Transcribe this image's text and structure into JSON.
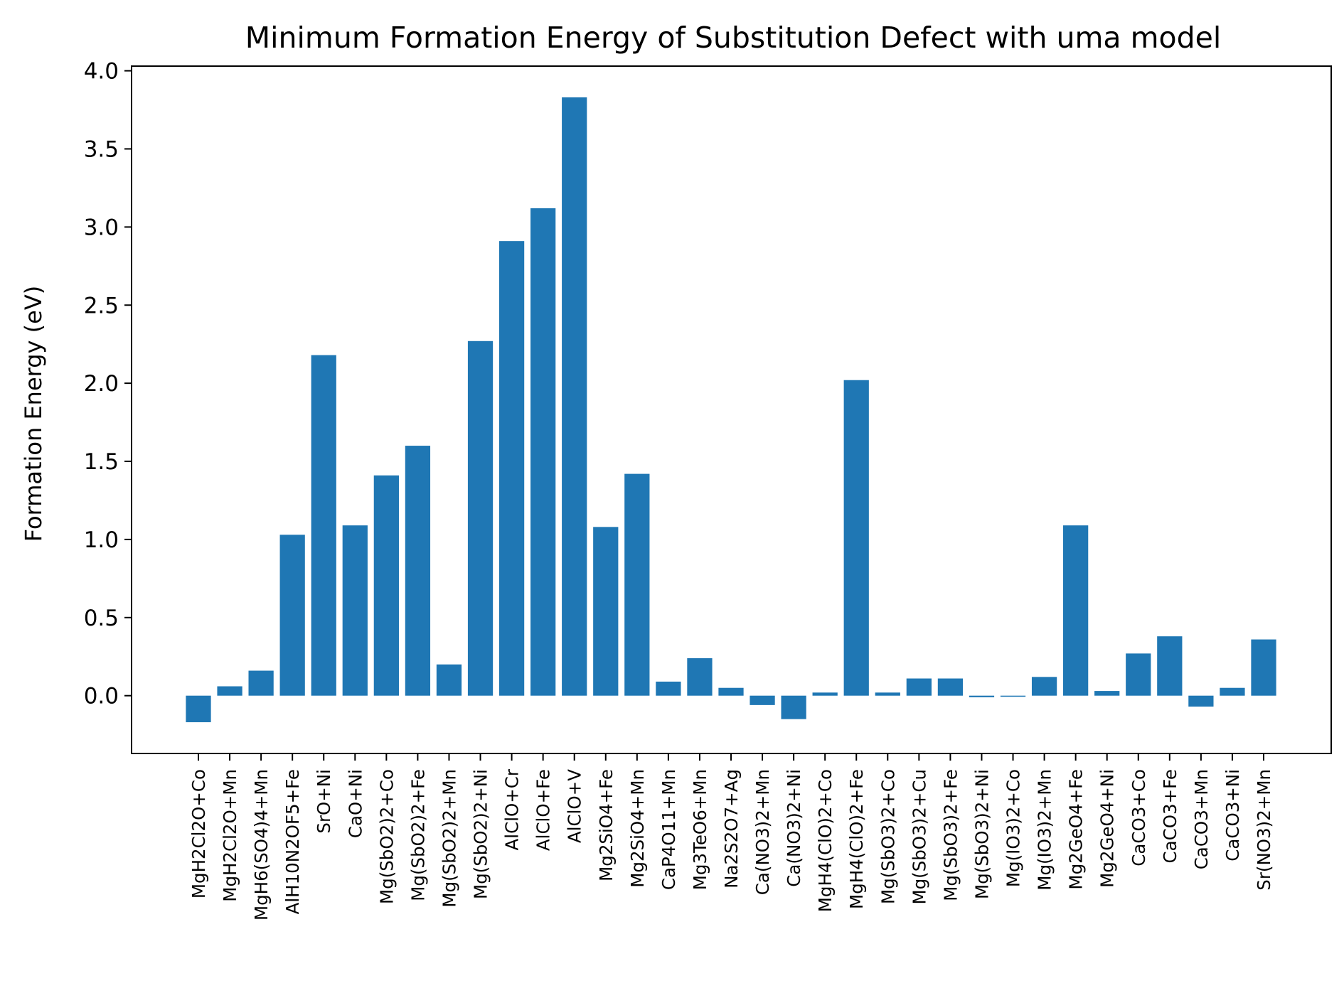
{
  "chart_data": {
    "type": "bar",
    "title": "Minimum Formation Energy of Substitution Defect with uma model",
    "xlabel": "",
    "ylabel": "Formation Energy (eV)",
    "ylim": [
      -0.37,
      4.03
    ],
    "yticks": [
      "0.0",
      "0.5",
      "1.0",
      "1.5",
      "2.0",
      "2.5",
      "3.0",
      "3.5",
      "4.0"
    ],
    "grid": false,
    "bar_color": "#1f77b4",
    "categories": [
      "MgH2Cl2O+Co",
      "MgH2Cl2O+Mn",
      "MgH6(SO4)4+Mn",
      "AlH10N2OF5+Fe",
      "SrO+Ni",
      "CaO+Ni",
      "Mg(SbO2)2+Co",
      "Mg(SbO2)2+Fe",
      "Mg(SbO2)2+Mn",
      "Mg(SbO2)2+Ni",
      "AlClO+Cr",
      "AlClO+Fe",
      "AlClO+V",
      "Mg2SiO4+Fe",
      "Mg2SiO4+Mn",
      "CaP4O11+Mn",
      "Mg3TeO6+Mn",
      "Na2S2O7+Ag",
      "Ca(NO3)2+Mn",
      "Ca(NO3)2+Ni",
      "MgH4(ClO)2+Co",
      "MgH4(ClO)2+Fe",
      "Mg(SbO3)2+Co",
      "Mg(SbO3)2+Cu",
      "Mg(SbO3)2+Fe",
      "Mg(SbO3)2+Ni",
      "Mg(IO3)2+Co",
      "Mg(IO3)2+Mn",
      "Mg2GeO4+Fe",
      "Mg2GeO4+Ni",
      "CaCO3+Co",
      "CaCO3+Fe",
      "CaCO3+Mn",
      "CaCO3+Ni",
      "Sr(NO3)2+Mn"
    ],
    "values": [
      -0.17,
      0.06,
      0.16,
      1.03,
      2.18,
      1.09,
      1.41,
      1.6,
      0.2,
      2.27,
      2.91,
      3.12,
      3.83,
      1.08,
      1.42,
      0.09,
      0.24,
      0.05,
      -0.06,
      -0.15,
      0.02,
      2.02,
      0.02,
      0.11,
      0.11,
      -0.01,
      -0.005,
      0.12,
      1.09,
      0.03,
      0.27,
      0.38,
      -0.07,
      0.05,
      0.36
    ]
  }
}
